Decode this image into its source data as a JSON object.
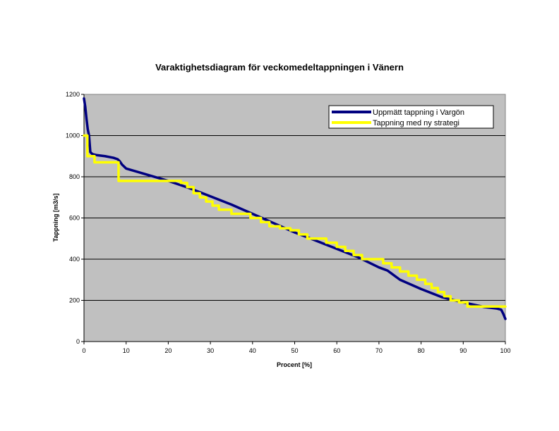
{
  "chart_data": {
    "type": "line",
    "title": "Varaktighetsdiagram för veckomedeltappningen i Vänern",
    "xlabel": "Procent [%]",
    "ylabel": "Tappning [m3/s]",
    "xlim": [
      0,
      100
    ],
    "ylim": [
      0,
      1200
    ],
    "xticks": [
      0,
      10,
      20,
      30,
      40,
      50,
      60,
      70,
      80,
      90,
      100
    ],
    "yticks": [
      0,
      200,
      400,
      600,
      800,
      1000,
      1200
    ],
    "grid": "horizontal",
    "plot_background": "#C0C0C0",
    "legend_position": "top-right",
    "series": [
      {
        "name": "Uppmätt tappning i Vargön",
        "color": "#000080",
        "step": false,
        "x": [
          0,
          0.3,
          0.6,
          0.9,
          1.2,
          1.5,
          2,
          3,
          5,
          7,
          8,
          8.5,
          9,
          10,
          15,
          20,
          25,
          30,
          35,
          40,
          45,
          50,
          55,
          60,
          65,
          67,
          70,
          72,
          75,
          80,
          85,
          90,
          95,
          98,
          99,
          99.5,
          100
        ],
        "y": [
          1180,
          1140,
          1080,
          1030,
          1000,
          920,
          910,
          905,
          900,
          892,
          885,
          875,
          860,
          840,
          810,
          780,
          745,
          705,
          665,
          620,
          575,
          530,
          490,
          450,
          410,
          390,
          360,
          345,
          300,
          255,
          215,
          190,
          168,
          160,
          155,
          135,
          110
        ]
      },
      {
        "name": "Tappning med ny strategi",
        "color": "#FFFF00",
        "step": true,
        "x": [
          0,
          0.8,
          2.5,
          8.2,
          21,
          23,
          24.5,
          26,
          27.5,
          29,
          30.5,
          32,
          33.5,
          35,
          37,
          39.5,
          42,
          44,
          46.5,
          49,
          51,
          53,
          55,
          57.5,
          60,
          62,
          64,
          66,
          68.5,
          71,
          73,
          75,
          77,
          79,
          81,
          82.5,
          84,
          85.5,
          87,
          89,
          91,
          100
        ],
        "y": [
          1000,
          900,
          870,
          780,
          780,
          770,
          750,
          720,
          700,
          680,
          660,
          640,
          640,
          620,
          620,
          600,
          580,
          560,
          550,
          540,
          520,
          500,
          500,
          480,
          460,
          440,
          420,
          400,
          400,
          380,
          360,
          340,
          320,
          300,
          280,
          260,
          240,
          220,
          200,
          190,
          170,
          170
        ]
      }
    ]
  }
}
